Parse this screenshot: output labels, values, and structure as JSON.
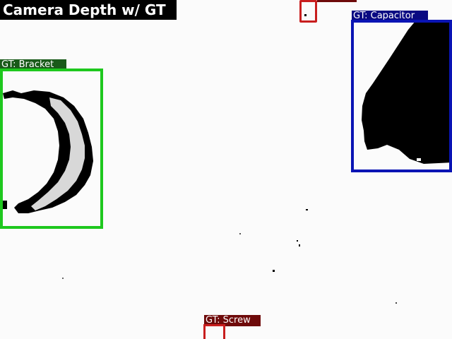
{
  "title": "Camera Depth w/ GT",
  "detections": [
    {
      "label": "GT: Bracket",
      "color": "#1ec81e"
    },
    {
      "label": "GT: Capacitor",
      "color": "#0a14b4"
    },
    {
      "label": "GT: Screw",
      "color": "#c81e1e"
    }
  ],
  "colors": {
    "depth_background": "#fbfbfb",
    "depth_shadow": "#000000",
    "depth_object": "#d8d8d8",
    "title_bg": "#000000",
    "bracket_tag_bg": "#1a5a1a",
    "capacitor_tag_bg": "#0a0a82",
    "screw_tag_bg": "#6e0a0a",
    "partial_box": "#c81e1e"
  }
}
